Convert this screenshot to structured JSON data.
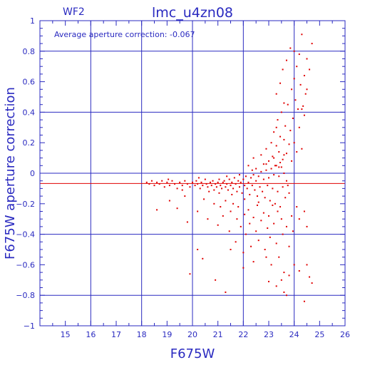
{
  "chart_data": {
    "type": "scatter",
    "title": "lmc_u4zn08",
    "corner_label": "WF2",
    "annotation": "Average aperture correction:  -0.067",
    "xlabel": "F675W",
    "ylabel": "F675W aperture correction",
    "xlim": [
      14,
      26
    ],
    "ylim": [
      -1,
      1
    ],
    "xticks": [
      15,
      16,
      17,
      18,
      19,
      20,
      21,
      22,
      23,
      24,
      25,
      26
    ],
    "yticks": [
      1,
      0.8,
      0.6,
      0.4,
      0.2,
      0,
      -0.2,
      -0.4,
      -0.6,
      -0.8,
      -1
    ],
    "ytick_labels": [
      "1",
      "0.8",
      "0.6",
      "0.4",
      "0.2",
      "0",
      "−0.2",
      "−0.4",
      "−0.6",
      "−0.8",
      "−1"
    ],
    "grid_x": [
      16,
      18,
      20,
      22,
      24
    ],
    "grid_y": [
      0.8,
      0.4,
      0,
      -0.4,
      -0.8
    ],
    "average_line": -0.067,
    "colors": {
      "axes": "#2a2ac0",
      "points": "#e00000",
      "average_line": "#e00000"
    },
    "series": [
      {
        "points": [
          [
            18.2,
            -0.06
          ],
          [
            18.3,
            -0.07
          ],
          [
            18.4,
            -0.05
          ],
          [
            18.5,
            -0.08
          ],
          [
            18.6,
            -0.06
          ],
          [
            18.7,
            -0.07
          ],
          [
            18.8,
            -0.05
          ],
          [
            18.9,
            -0.09
          ],
          [
            19.0,
            -0.06
          ],
          [
            19.1,
            -0.08
          ],
          [
            19.2,
            -0.05
          ],
          [
            19.3,
            -0.07
          ],
          [
            19.4,
            -0.1
          ],
          [
            19.5,
            -0.06
          ],
          [
            19.6,
            -0.08
          ],
          [
            19.7,
            -0.05
          ],
          [
            19.8,
            -0.07
          ],
          [
            19.9,
            -0.09
          ],
          [
            20.0,
            -0.06
          ],
          [
            20.1,
            -0.08
          ],
          [
            20.15,
            -0.05
          ],
          [
            20.2,
            -0.07
          ],
          [
            20.3,
            -0.1
          ],
          [
            20.35,
            -0.06
          ],
          [
            20.4,
            -0.08
          ],
          [
            20.5,
            -0.04
          ],
          [
            20.55,
            -0.07
          ],
          [
            20.6,
            -0.09
          ],
          [
            20.7,
            -0.06
          ],
          [
            20.75,
            -0.08
          ],
          [
            20.8,
            -0.05
          ],
          [
            20.85,
            -0.11
          ],
          [
            20.9,
            -0.07
          ],
          [
            20.95,
            -0.09
          ],
          [
            21.0,
            -0.06
          ],
          [
            21.05,
            -0.04
          ],
          [
            21.1,
            -0.08
          ],
          [
            21.15,
            -0.1
          ],
          [
            21.2,
            -0.06
          ],
          [
            21.25,
            -0.05
          ],
          [
            21.3,
            -0.09
          ],
          [
            21.35,
            -0.07
          ],
          [
            21.4,
            -0.11
          ],
          [
            21.45,
            -0.04
          ],
          [
            21.5,
            -0.08
          ],
          [
            21.55,
            -0.06
          ],
          [
            21.6,
            -0.1
          ],
          [
            21.65,
            -0.03
          ],
          [
            21.7,
            -0.07
          ],
          [
            21.75,
            -0.12
          ],
          [
            21.8,
            -0.05
          ],
          [
            21.85,
            -0.09
          ],
          [
            21.9,
            -0.06
          ],
          [
            21.95,
            -0.13
          ],
          [
            22.0,
            -0.04
          ],
          [
            22.05,
            -0.08
          ],
          [
            22.1,
            -0.02
          ],
          [
            22.15,
            -0.1
          ],
          [
            22.2,
            -0.06
          ],
          [
            22.25,
            -0.14
          ],
          [
            22.3,
            -0.03
          ],
          [
            22.35,
            -0.08
          ],
          [
            22.4,
            -0.01
          ],
          [
            22.45,
            -0.11
          ],
          [
            22.5,
            -0.05
          ],
          [
            22.55,
            -0.15
          ],
          [
            22.6,
            -0.02
          ],
          [
            22.65,
            -0.09
          ],
          [
            22.7,
            0.01
          ],
          [
            22.75,
            -0.12
          ],
          [
            22.8,
            -0.04
          ],
          [
            22.85,
            -0.16
          ],
          [
            22.9,
            0.02
          ],
          [
            22.95,
            -0.08
          ],
          [
            23.0,
            -0.03
          ],
          [
            23.05,
            -0.18
          ],
          [
            23.1,
            0.03
          ],
          [
            23.15,
            -0.1
          ],
          [
            23.2,
            -0.01
          ],
          [
            23.25,
            -0.2
          ],
          [
            23.3,
            0.05
          ],
          [
            23.35,
            -0.12
          ],
          [
            23.4,
            -0.02
          ],
          [
            23.45,
            -0.22
          ],
          [
            23.5,
            0.04
          ],
          [
            23.55,
            -0.09
          ],
          [
            23.6,
            0.0
          ],
          [
            23.65,
            -0.16
          ],
          [
            23.7,
            -0.05
          ],
          [
            23.8,
            -0.13
          ],
          [
            19.05,
            -0.04
          ],
          [
            19.6,
            -0.11
          ],
          [
            20.25,
            -0.03
          ],
          [
            20.65,
            -0.12
          ],
          [
            21.05,
            -0.13
          ],
          [
            21.35,
            -0.02
          ],
          [
            21.55,
            -0.14
          ],
          [
            21.85,
            -0.01
          ],
          [
            22.05,
            -0.17
          ],
          [
            22.35,
            0.02
          ],
          [
            22.6,
            -0.19
          ],
          [
            22.9,
            0.06
          ],
          [
            23.15,
            -0.21
          ],
          [
            23.45,
            0.07
          ],
          [
            23.75,
            -0.08
          ],
          [
            19.1,
            -0.18
          ],
          [
            19.4,
            -0.23
          ],
          [
            19.7,
            -0.15
          ],
          [
            20.2,
            -0.25
          ],
          [
            20.45,
            -0.17
          ],
          [
            20.6,
            -0.3
          ],
          [
            20.85,
            -0.2
          ],
          [
            21.0,
            -0.34
          ],
          [
            21.1,
            -0.22
          ],
          [
            21.2,
            -0.28
          ],
          [
            21.3,
            -0.18
          ],
          [
            21.45,
            -0.38
          ],
          [
            21.5,
            -0.25
          ],
          [
            21.6,
            -0.2
          ],
          [
            21.7,
            -0.45
          ],
          [
            21.75,
            -0.3
          ],
          [
            21.8,
            -0.22
          ],
          [
            21.9,
            -0.35
          ],
          [
            22.0,
            -0.52
          ],
          [
            22.05,
            -0.27
          ],
          [
            22.1,
            -0.4
          ],
          [
            22.2,
            -0.24
          ],
          [
            22.25,
            -0.33
          ],
          [
            22.3,
            -0.48
          ],
          [
            22.4,
            -0.29
          ],
          [
            22.5,
            -0.38
          ],
          [
            22.55,
            -0.21
          ],
          [
            22.6,
            -0.44
          ],
          [
            22.7,
            -0.31
          ],
          [
            22.8,
            -0.26
          ],
          [
            22.85,
            -0.5
          ],
          [
            22.95,
            -0.36
          ],
          [
            23.0,
            -0.28
          ],
          [
            23.05,
            -0.42
          ],
          [
            23.1,
            -0.6
          ],
          [
            23.2,
            -0.33
          ],
          [
            23.3,
            -0.46
          ],
          [
            23.35,
            -0.25
          ],
          [
            23.4,
            -0.55
          ],
          [
            23.5,
            -0.3
          ],
          [
            23.55,
            -0.4
          ],
          [
            23.6,
            -0.65
          ],
          [
            23.7,
            -0.35
          ],
          [
            23.8,
            -0.48
          ],
          [
            23.9,
            -0.28
          ],
          [
            23.95,
            -0.38
          ],
          [
            24.1,
            -0.22
          ],
          [
            24.2,
            -0.3
          ],
          [
            24.4,
            -0.25
          ],
          [
            24.5,
            -0.35
          ],
          [
            18.6,
            -0.24
          ],
          [
            19.8,
            -0.32
          ],
          [
            20.2,
            -0.5
          ],
          [
            20.4,
            -0.56
          ],
          [
            20.9,
            -0.7
          ],
          [
            21.3,
            -0.78
          ],
          [
            21.5,
            -0.5
          ],
          [
            22.0,
            -0.62
          ],
          [
            22.4,
            -0.58
          ],
          [
            22.9,
            -0.55
          ],
          [
            23.0,
            -0.71
          ],
          [
            23.3,
            -0.74
          ],
          [
            23.5,
            -0.7
          ],
          [
            23.6,
            -0.78
          ],
          [
            23.7,
            -0.8
          ],
          [
            23.8,
            -0.67
          ],
          [
            24.0,
            -0.6
          ],
          [
            24.2,
            -0.64
          ],
          [
            24.5,
            -0.6
          ],
          [
            24.6,
            -0.68
          ],
          [
            24.7,
            -0.72
          ],
          [
            24.4,
            -0.84
          ],
          [
            19.9,
            -0.66
          ],
          [
            22.2,
            0.05
          ],
          [
            22.4,
            0.1
          ],
          [
            22.5,
            0.03
          ],
          [
            22.7,
            0.12
          ],
          [
            22.8,
            0.06
          ],
          [
            22.9,
            0.16
          ],
          [
            23.0,
            0.08
          ],
          [
            23.1,
            0.2
          ],
          [
            23.15,
            0.11
          ],
          [
            23.2,
            0.27
          ],
          [
            23.25,
            0.05
          ],
          [
            23.3,
            0.18
          ],
          [
            23.35,
            0.35
          ],
          [
            23.4,
            0.14
          ],
          [
            23.45,
            0.24
          ],
          [
            23.5,
            0.4
          ],
          [
            23.55,
            0.09
          ],
          [
            23.6,
            0.22
          ],
          [
            23.65,
            0.31
          ],
          [
            23.7,
            0.13
          ],
          [
            23.75,
            0.45
          ],
          [
            23.8,
            0.19
          ],
          [
            23.85,
            0.28
          ],
          [
            23.9,
            0.55
          ],
          [
            23.95,
            0.36
          ],
          [
            24.0,
            0.62
          ],
          [
            24.05,
            0.48
          ],
          [
            24.1,
            0.7
          ],
          [
            24.15,
            0.42
          ],
          [
            24.2,
            0.78
          ],
          [
            24.25,
            0.58
          ],
          [
            24.3,
            0.91
          ],
          [
            24.35,
            0.44
          ],
          [
            24.4,
            0.64
          ],
          [
            24.45,
            0.52
          ],
          [
            24.5,
            0.75
          ],
          [
            24.6,
            0.68
          ],
          [
            24.7,
            0.85
          ],
          [
            23.3,
            0.52
          ],
          [
            23.45,
            0.59
          ],
          [
            23.55,
            0.68
          ],
          [
            23.7,
            0.74
          ],
          [
            23.85,
            0.82
          ],
          [
            24.0,
            0.8
          ],
          [
            23.3,
            0.3
          ],
          [
            23.6,
            0.46
          ],
          [
            24.0,
            0.2
          ],
          [
            24.2,
            0.3
          ],
          [
            24.3,
            0.42
          ],
          [
            24.5,
            0.55
          ],
          [
            23.2,
            0.1
          ],
          [
            23.4,
            0.04
          ],
          [
            23.6,
            0.12
          ],
          [
            23.9,
            0.08
          ],
          [
            24.1,
            0.14
          ],
          [
            24.3,
            0.16
          ],
          [
            24.4,
            0.38
          ]
        ]
      }
    ]
  }
}
